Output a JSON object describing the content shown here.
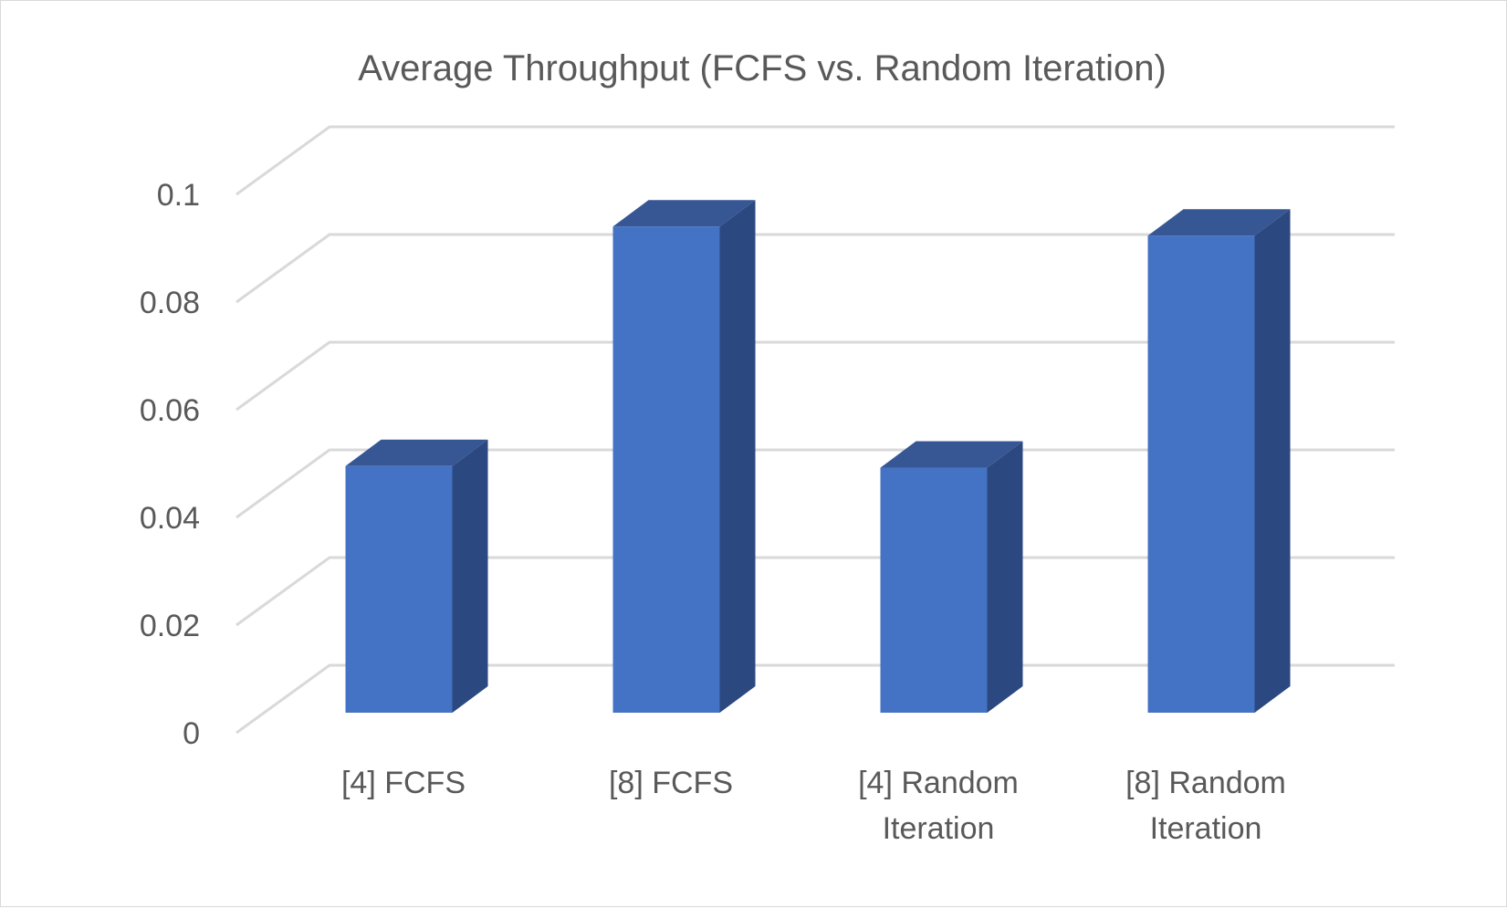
{
  "chart_data": {
    "type": "bar",
    "style": "3d-column",
    "title": "Average Throughput (FCFS vs. Random Iteration)",
    "categories": [
      [
        "[4] FCFS"
      ],
      [
        "[8] FCFS"
      ],
      [
        "[4] Random",
        "Iteration"
      ],
      [
        "[8] Random",
        "Iteration"
      ]
    ],
    "values": [
      0.0458,
      0.0903,
      0.0455,
      0.0886
    ],
    "y_ticks": [
      "0",
      "0.02",
      "0.04",
      "0.06",
      "0.08",
      "0.1"
    ],
    "ylim": [
      0,
      0.1
    ],
    "grid": true,
    "legend": "none",
    "colors": {
      "bar_front": "#4472c4",
      "bar_side": "#2b4880",
      "bar_top": "#375694",
      "grid": "#d9d9d9",
      "text": "#595959"
    }
  }
}
